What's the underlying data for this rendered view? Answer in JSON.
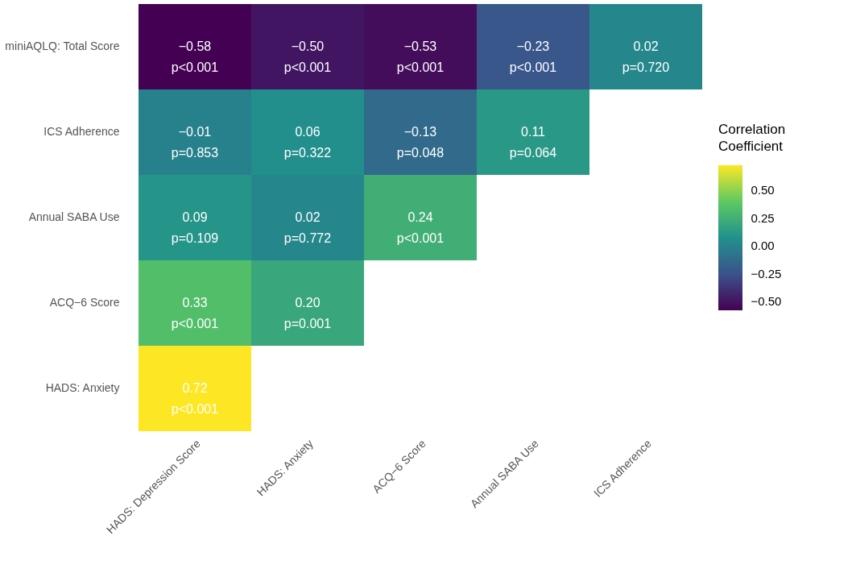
{
  "chart_data": {
    "type": "heatmap",
    "clabel": "Correlation\nCoefficient",
    "categories": [
      "HADS: Depression Score",
      "HADS: Anxiety",
      "ACQ−6 Score",
      "Annual SABA Use",
      "ICS Adherence"
    ],
    "y_categories": [
      "miniAQLQ: Total Score",
      "ICS Adherence",
      "Annual SABA Use",
      "ACQ−6 Score",
      "HADS: Anxiety"
    ],
    "cells": [
      [
        -0.58,
        -0.5,
        -0.53,
        -0.23,
        0.02
      ],
      [
        -0.01,
        0.06,
        -0.13,
        0.11,
        null
      ],
      [
        0.09,
        0.02,
        0.24,
        null,
        null
      ],
      [
        0.33,
        0.2,
        null,
        null,
        null
      ],
      [
        0.72,
        null,
        null,
        null,
        null
      ]
    ],
    "cell_labels": [
      [
        "−0.58\np<0.001",
        "−0.50\np<0.001",
        "−0.53\np<0.001",
        "−0.23\np<0.001",
        "0.02\np=0.720"
      ],
      [
        "−0.01\np=0.853",
        "0.06\np=0.322",
        "−0.13\np=0.048",
        "0.11\np=0.064",
        null
      ],
      [
        "0.09\np=0.109",
        "0.02\np=0.772",
        "0.24\np<0.001",
        null,
        null
      ],
      [
        "0.33\np<0.001",
        "0.20\np=0.001",
        null,
        null,
        null
      ],
      [
        "0.72\np<0.001",
        null,
        null,
        null,
        null
      ]
    ],
    "clim": [
      -0.58,
      0.72
    ],
    "cticks": [
      {
        "value": -0.5,
        "label": "−0.50"
      },
      {
        "value": -0.25,
        "label": "−0.25"
      },
      {
        "value": 0,
        "label": "0.00"
      },
      {
        "value": 0.25,
        "label": "0.25"
      },
      {
        "value": 0.5,
        "label": "0.50"
      }
    ]
  }
}
